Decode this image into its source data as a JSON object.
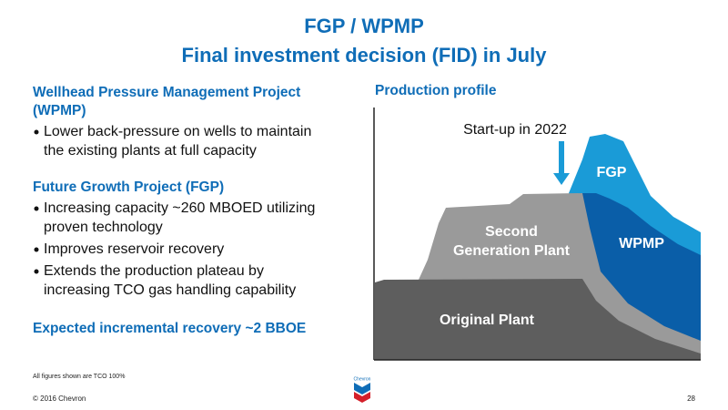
{
  "header": {
    "title_lines": [
      "FGP / WPMP",
      "Final investment decision (FID) in July"
    ]
  },
  "left": {
    "sections": [
      {
        "heading_lines": [
          "Wellhead Pressure Management Project",
          "(WPMP)"
        ],
        "bullets": [
          [
            "Lower back-pressure on wells to maintain",
            "the existing plants at full capacity"
          ]
        ]
      },
      {
        "heading_lines": [
          "Future Growth Project (FGP)"
        ],
        "bullets": [
          [
            "Increasing capacity ~260 MBOED utilizing",
            "proven technology"
          ],
          [
            "Improves reservoir recovery"
          ],
          [
            "Extends the production plateau by",
            "increasing TCO gas handling capability"
          ]
        ]
      }
    ],
    "closing": "Expected incremental recovery ~2 BBOE"
  },
  "chart": {
    "title": "Production profile",
    "annotation": "Start-up in 2022",
    "areas": {
      "fgp": "FGP",
      "wpmp": "WPMP",
      "second": [
        "Second",
        "Generation Plant"
      ],
      "original": "Original Plant"
    }
  },
  "footer": {
    "note": "All figures shown are TCO 100%",
    "logo": "Chevron",
    "copyright": "© 2016 Chevron",
    "page": "28"
  }
}
